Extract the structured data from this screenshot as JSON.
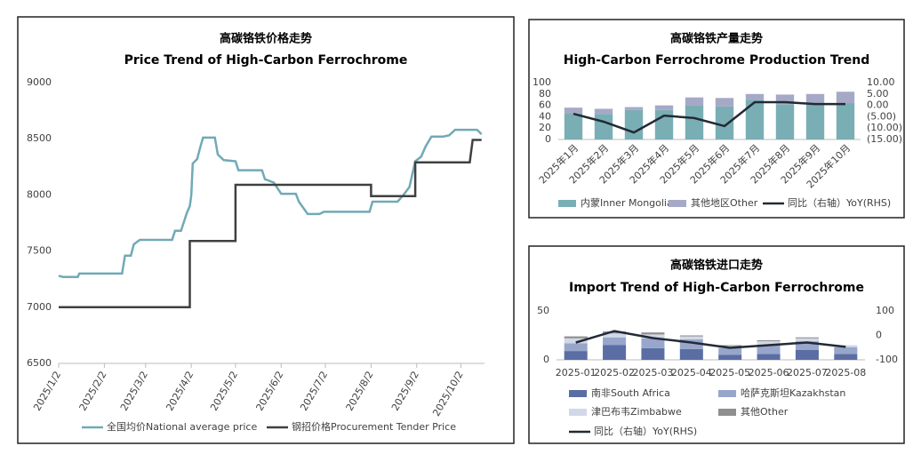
{
  "chart_data": [
    {
      "type": "line",
      "title": "高碳铬铁价格走势",
      "subtitle": "Price Trend of High-Carbon Ferrochrome",
      "xlim": [
        "2025/1/2",
        "2025/10/18"
      ],
      "xticks": [
        "2025/1/2",
        "2025/2/2",
        "2025/3/2",
        "2025/4/2",
        "2025/5/2",
        "2025/6/2",
        "2025/7/2",
        "2025/8/2",
        "2025/9/2",
        "2025/10/2"
      ],
      "ylim": [
        6500,
        9000
      ],
      "yticks": [
        6500,
        7000,
        7500,
        8000,
        8500,
        9000
      ],
      "grid": false,
      "legend": "bottom",
      "series": [
        {
          "name": "全国均价National average price",
          "color": "#71a9b7",
          "x": [
            "2025/1/2",
            "2025/1/5",
            "2025/1/15",
            "2025/1/16",
            "2025/2/14",
            "2025/2/16",
            "2025/2/20",
            "2025/2/22",
            "2025/2/26",
            "2025/3/20",
            "2025/3/22",
            "2025/3/26",
            "2025/3/28",
            "2025/3/30",
            "2025/4/1",
            "2025/4/2",
            "2025/4/3",
            "2025/4/6",
            "2025/4/8",
            "2025/4/10",
            "2025/4/18",
            "2025/4/20",
            "2025/4/24",
            "2025/5/2",
            "2025/5/4",
            "2025/5/20",
            "2025/5/22",
            "2025/5/28",
            "2025/6/2",
            "2025/6/12",
            "2025/6/14",
            "2025/6/20",
            "2025/6/28",
            "2025/7/1",
            "2025/8/1",
            "2025/8/3",
            "2025/8/20",
            "2025/8/24",
            "2025/8/28",
            "2025/9/1",
            "2025/9/5",
            "2025/9/8",
            "2025/9/12",
            "2025/9/20",
            "2025/9/24",
            "2025/9/28",
            "2025/10/13",
            "2025/10/16"
          ],
          "values": [
            7280,
            7270,
            7270,
            7300,
            7300,
            7460,
            7460,
            7560,
            7600,
            7600,
            7680,
            7680,
            7760,
            7840,
            7900,
            8000,
            8280,
            8320,
            8420,
            8510,
            8510,
            8360,
            8310,
            8300,
            8220,
            8220,
            8140,
            8110,
            8010,
            8010,
            7940,
            7830,
            7830,
            7850,
            7850,
            7940,
            7940,
            8000,
            8070,
            8300,
            8340,
            8430,
            8520,
            8520,
            8530,
            8580,
            8580,
            8540
          ]
        },
        {
          "name": "钢招价格Procurement Tender Price",
          "color": "#404040",
          "x": [
            "2025/1/2",
            "2025/4/1",
            "2025/4/1",
            "2025/5/2",
            "2025/5/2",
            "2025/8/2",
            "2025/8/2",
            "2025/9/1",
            "2025/9/1",
            "2025/10/8",
            "2025/10/10",
            "2025/10/16"
          ],
          "values": [
            7000,
            7000,
            7590,
            7590,
            8090,
            8090,
            7990,
            7990,
            8290,
            8290,
            8490,
            8490
          ]
        }
      ]
    },
    {
      "type": "bar",
      "title": "高碳铬铁产量走势",
      "subtitle": "High-Carbon Ferrochrome Production Trend",
      "stacked": true,
      "legend": "bottom",
      "categories": [
        "2025年1月",
        "2025年2月",
        "2025年3月",
        "2025年4月",
        "2025年5月",
        "2025年6月",
        "2025年7月",
        "2025年8月",
        "2025年9月",
        "2025年10月"
      ],
      "ylim": [
        0,
        100
      ],
      "yticks": [
        0,
        20,
        40,
        60,
        80,
        100
      ],
      "y2lim": [
        -15,
        10
      ],
      "y2ticks": [
        {
          "value": 10,
          "label": "10.00"
        },
        {
          "value": 5,
          "label": "5.00"
        },
        {
          "value": 0,
          "label": "0.00"
        },
        {
          "value": -5,
          "label": "(5.00)"
        },
        {
          "value": -10,
          "label": "(10.00)"
        },
        {
          "value": -15,
          "label": "(15.00)"
        }
      ],
      "y2_negative_color": "#c00000",
      "series": [
        {
          "name": "内蒙Inner Mongolia",
          "color": "#7aaeb5",
          "values": [
            46,
            45,
            52,
            52,
            60,
            58,
            70,
            62,
            62,
            64
          ]
        },
        {
          "name": "其他地区Other",
          "color": "#a6a9c6",
          "values": [
            10,
            9,
            5,
            8,
            14,
            15,
            10,
            17,
            18,
            20
          ]
        },
        {
          "name": "同比（右轴）YoY(RHS)",
          "color": "#222a35",
          "type": "line",
          "axis": "y2",
          "values": [
            -3.7,
            -7.2,
            -11.9,
            -4.5,
            -5.6,
            -9.1,
            1.4,
            1.4,
            0.6,
            0.6
          ]
        }
      ]
    },
    {
      "type": "bar",
      "title": "高碳铬铁进口走势",
      "subtitle": "Import Trend of High-Carbon Ferrochrome",
      "stacked": true,
      "legend": "bottom",
      "categories": [
        "2025-01",
        "2025-02",
        "2025-03",
        "2025-04",
        "2025-05",
        "2025-06",
        "2025-07",
        "2025-08"
      ],
      "ylim": [
        0,
        50
      ],
      "yticks": [
        0,
        50
      ],
      "y2lim": [
        -100,
        100
      ],
      "y2ticks": [
        100,
        0,
        -100
      ],
      "series": [
        {
          "name": "南非South Africa",
          "color": "#5a6ea4",
          "values": [
            9,
            15,
            12,
            11,
            5,
            6,
            10,
            6
          ]
        },
        {
          "name": "哈萨克斯坦Kazakhstan",
          "color": "#98a6cb",
          "values": [
            8,
            8,
            10,
            10,
            7,
            9,
            9,
            7
          ]
        },
        {
          "name": "津巴布韦Zimbabwe",
          "color": "#d3d8e8",
          "values": [
            5,
            4,
            4,
            3,
            2,
            4,
            3,
            2
          ]
        },
        {
          "name": "其他Other",
          "color": "#8f8f8f",
          "values": [
            2,
            2,
            2,
            1,
            1,
            1,
            1,
            0
          ]
        },
        {
          "name": "同比（右轴）YoY(RHS)",
          "color": "#222a35",
          "type": "line",
          "axis": "y2",
          "values": [
            -29,
            18,
            -11,
            -29,
            -51,
            -40,
            -29,
            -47
          ]
        }
      ]
    }
  ]
}
